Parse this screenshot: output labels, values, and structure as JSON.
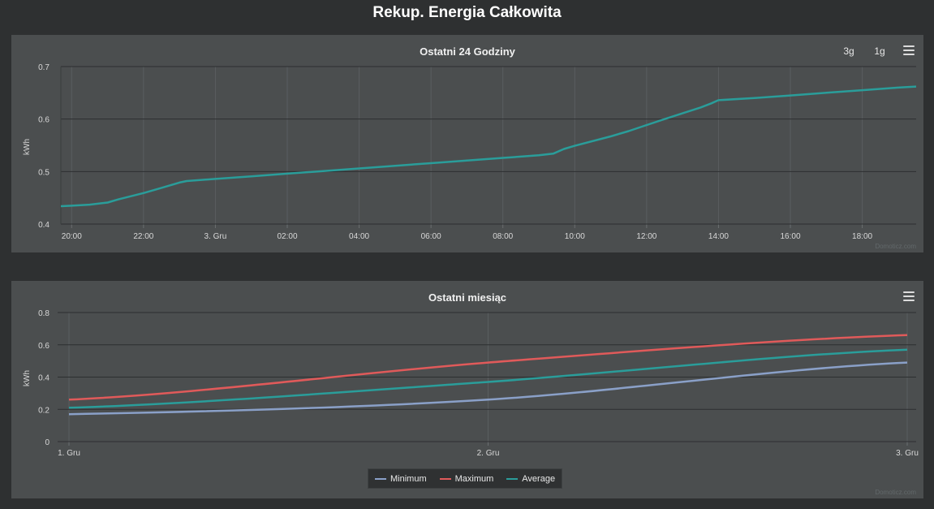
{
  "page": {
    "title": "Rekup. Energia Całkowita"
  },
  "chart_data": [
    {
      "type": "line",
      "title": "Ostatni 24 Godziny",
      "ylabel": "kWh",
      "xlabel": "",
      "ylim": [
        0.4,
        0.7
      ],
      "yticks": [
        "0.7",
        "0.6",
        "0.5",
        "0.4"
      ],
      "x_tick_labels": [
        "20:00",
        "22:00",
        "3. Gru",
        "02:00",
        "04:00",
        "06:00",
        "08:00",
        "10:00",
        "12:00",
        "14:00",
        "16:00",
        "18:00"
      ],
      "x_range_hours": [
        19.7,
        43.5
      ],
      "x_tick_hours": [
        20,
        22,
        24,
        26,
        28,
        30,
        32,
        34,
        36,
        38,
        40,
        42
      ],
      "grid": true,
      "series": [
        {
          "color": "#2a9d9a",
          "x_hours": [
            19.7,
            20.0,
            20.5,
            21.0,
            21.3,
            22.0,
            22.5,
            23.0,
            23.2,
            24.0,
            25.0,
            26.0,
            27.0,
            28.0,
            29.0,
            30.0,
            31.0,
            32.0,
            33.0,
            33.4,
            33.7,
            34.0,
            35.0,
            35.5,
            35.8,
            36.5,
            37.0,
            37.5,
            37.8,
            38.0,
            39.0,
            40.0,
            41.0,
            42.0,
            43.0,
            43.5
          ],
          "values": [
            0.434,
            0.435,
            0.437,
            0.441,
            0.447,
            0.459,
            0.469,
            0.479,
            0.482,
            0.486,
            0.491,
            0.496,
            0.501,
            0.506,
            0.511,
            0.516,
            0.521,
            0.526,
            0.531,
            0.534,
            0.543,
            0.549,
            0.567,
            0.577,
            0.584,
            0.6,
            0.611,
            0.622,
            0.63,
            0.636,
            0.64,
            0.645,
            0.65,
            0.655,
            0.66,
            0.662
          ]
        }
      ],
      "range_buttons": [
        "3g",
        "1g"
      ],
      "credit": "Domoticz.com"
    },
    {
      "type": "line",
      "title": "Ostatni miesiąc",
      "ylabel": "kWh",
      "xlabel": "",
      "ylim": [
        0,
        0.8
      ],
      "yticks": [
        "0.8",
        "0.6",
        "0.4",
        "0.2",
        "0"
      ],
      "categories": [
        "1. Gru",
        "2. Gru",
        "3. Gru"
      ],
      "grid": true,
      "legend_position": "bottom-center",
      "series": [
        {
          "name": "Minimum",
          "color": "#8aa0c8",
          "values": [
            0.17,
            0.26,
            0.49
          ]
        },
        {
          "name": "Maximum",
          "color": "#e05a5a",
          "values": [
            0.26,
            0.49,
            0.66
          ]
        },
        {
          "name": "Average",
          "color": "#2a9d9a",
          "values": [
            0.21,
            0.37,
            0.57
          ]
        }
      ],
      "credit": "Domoticz.com"
    }
  ]
}
